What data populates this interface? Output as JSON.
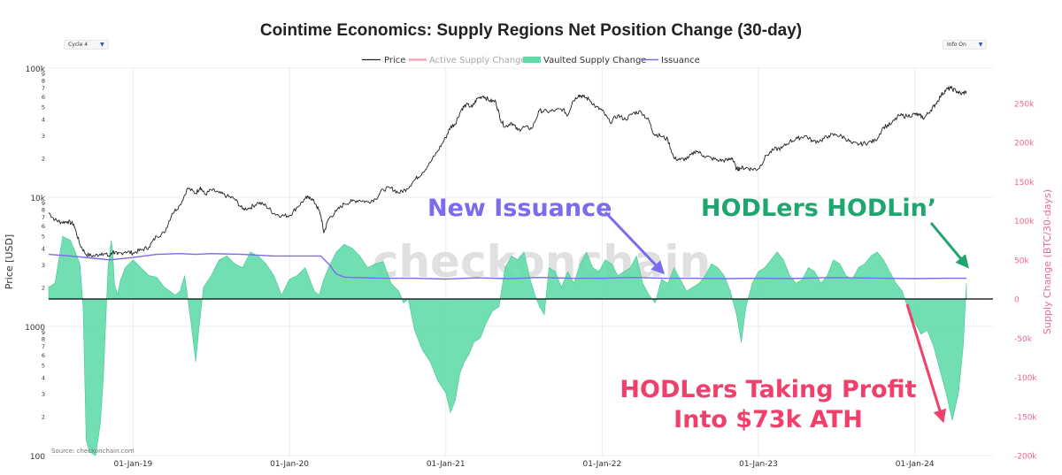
{
  "ui": {
    "cycle_label": "Cycle 4",
    "info_label": "Info On",
    "dropdown_arrow": "▼"
  },
  "chart_data": {
    "type": "line",
    "title": "Cointime Economics: Supply Regions Net Position Change (30-day)",
    "legend": {
      "position": "top-center",
      "entries": [
        {
          "name": "Price",
          "color": "#222222",
          "kind": "line"
        },
        {
          "name": "Active Supply Change",
          "color": "#f7a3b8",
          "kind": "line",
          "muted": true
        },
        {
          "name": "Vaulted Supply Change",
          "color": "#5fdba9",
          "kind": "area"
        },
        {
          "name": "Issuance",
          "color": "#7a6bef",
          "kind": "line"
        }
      ]
    },
    "y_left": {
      "label": "Price [USD]",
      "scale": "log",
      "range": [
        100,
        100000
      ],
      "major_ticks": [
        {
          "value": 100,
          "label": "100"
        },
        {
          "value": 1000,
          "label": "1000"
        },
        {
          "value": 10000,
          "label": "10k"
        },
        {
          "value": 100000,
          "label": "100k"
        }
      ],
      "minor_ticks": [
        {
          "value": 200,
          "label": "2"
        },
        {
          "value": 300,
          "label": "3"
        },
        {
          "value": 400,
          "label": "4"
        },
        {
          "value": 500,
          "label": "5"
        },
        {
          "value": 600,
          "label": "6"
        },
        {
          "value": 700,
          "label": "7"
        },
        {
          "value": 800,
          "label": "8"
        },
        {
          "value": 900,
          "label": "9"
        },
        {
          "value": 2000,
          "label": "2"
        },
        {
          "value": 3000,
          "label": "3"
        },
        {
          "value": 4000,
          "label": "4"
        },
        {
          "value": 5000,
          "label": "5"
        },
        {
          "value": 6000,
          "label": "6"
        },
        {
          "value": 7000,
          "label": "7"
        },
        {
          "value": 8000,
          "label": "8"
        },
        {
          "value": 9000,
          "label": "9"
        },
        {
          "value": 20000,
          "label": "2"
        },
        {
          "value": 30000,
          "label": "3"
        },
        {
          "value": 40000,
          "label": "4"
        },
        {
          "value": 50000,
          "label": "5"
        },
        {
          "value": 60000,
          "label": "6"
        },
        {
          "value": 70000,
          "label": "7"
        },
        {
          "value": 80000,
          "label": "8"
        },
        {
          "value": 90000,
          "label": "9"
        }
      ]
    },
    "y_right": {
      "label": "Supply Change (BTC/30-days)",
      "range": [
        -200000,
        295000
      ],
      "ticks": [
        {
          "value": 250000,
          "label": "250k"
        },
        {
          "value": 200000,
          "label": "200k"
        },
        {
          "value": 150000,
          "label": "150k"
        },
        {
          "value": 100000,
          "label": "100k"
        },
        {
          "value": 50000,
          "label": "50k"
        },
        {
          "value": 0,
          "label": "0"
        },
        {
          "value": -50000,
          "label": "-50k"
        },
        {
          "value": -100000,
          "label": "-100k"
        },
        {
          "value": -150000,
          "label": "-150k"
        },
        {
          "value": -200000,
          "label": "-200k"
        }
      ]
    },
    "x_axis": {
      "range": [
        2018.46,
        2024.5
      ],
      "ticks": [
        {
          "value": 2019.0,
          "label": "01-Jan-19"
        },
        {
          "value": 2020.0,
          "label": "01-Jan-20"
        },
        {
          "value": 2021.0,
          "label": "01-Jan-21"
        },
        {
          "value": 2022.0,
          "label": "01-Jan-22"
        },
        {
          "value": 2023.0,
          "label": "01-Jan-23"
        },
        {
          "value": 2024.0,
          "label": "01-Jan-24"
        }
      ]
    },
    "series": [
      {
        "name": "Price",
        "color": "#222222",
        "x": [
          2018.46,
          2018.5,
          2018.54,
          2018.58,
          2018.62,
          2018.66,
          2018.7,
          2018.75,
          2018.8,
          2018.85,
          2018.87,
          2018.9,
          2018.95,
          2019.0,
          2019.05,
          2019.1,
          2019.15,
          2019.2,
          2019.25,
          2019.3,
          2019.35,
          2019.4,
          2019.43,
          2019.46,
          2019.5,
          2019.55,
          2019.6,
          2019.65,
          2019.7,
          2019.75,
          2019.8,
          2019.85,
          2019.9,
          2019.95,
          2020.0,
          2020.05,
          2020.1,
          2020.13,
          2020.17,
          2020.2,
          2020.22,
          2020.25,
          2020.3,
          2020.35,
          2020.4,
          2020.45,
          2020.5,
          2020.55,
          2020.6,
          2020.65,
          2020.7,
          2020.75,
          2020.8,
          2020.85,
          2020.9,
          2020.95,
          2021.0,
          2021.03,
          2021.06,
          2021.1,
          2021.13,
          2021.17,
          2021.2,
          2021.24,
          2021.28,
          2021.32,
          2021.35,
          2021.38,
          2021.42,
          2021.46,
          2021.5,
          2021.55,
          2021.6,
          2021.65,
          2021.7,
          2021.75,
          2021.78,
          2021.81,
          2021.85,
          2021.88,
          2021.92,
          2021.96,
          2022.0,
          2022.05,
          2022.1,
          2022.15,
          2022.2,
          2022.25,
          2022.3,
          2022.33,
          2022.37,
          2022.42,
          2022.46,
          2022.5,
          2022.55,
          2022.6,
          2022.65,
          2022.7,
          2022.75,
          2022.8,
          2022.83,
          2022.86,
          2022.88,
          2022.92,
          2022.96,
          2023.0,
          2023.05,
          2023.1,
          2023.15,
          2023.2,
          2023.25,
          2023.3,
          2023.35,
          2023.4,
          2023.45,
          2023.5,
          2023.55,
          2023.6,
          2023.65,
          2023.7,
          2023.75,
          2023.8,
          2023.85,
          2023.9,
          2023.95,
          2024.0,
          2024.03,
          2024.06,
          2024.1,
          2024.13,
          2024.17,
          2024.2,
          2024.23,
          2024.27,
          2024.3,
          2024.33
        ],
        "values": [
          7600,
          6700,
          6400,
          6500,
          6200,
          4300,
          3600,
          3500,
          3700,
          3500,
          3800,
          3600,
          3800,
          3700,
          3900,
          4100,
          5000,
          5300,
          7500,
          8700,
          11800,
          10700,
          12000,
          10500,
          11400,
          10800,
          10200,
          9700,
          8100,
          8300,
          9100,
          8600,
          7500,
          7200,
          7200,
          8400,
          9700,
          10100,
          8800,
          7300,
          5300,
          6800,
          7800,
          8900,
          9300,
          9500,
          9200,
          9700,
          11500,
          11800,
          10800,
          11600,
          13600,
          15500,
          18500,
          23000,
          29000,
          35000,
          37000,
          48000,
          52000,
          50000,
          58000,
          61000,
          56000,
          55000,
          40000,
          35000,
          38000,
          33000,
          35000,
          34000,
          47000,
          46000,
          47000,
          48000,
          43000,
          55000,
          62000,
          60000,
          57000,
          50000,
          47000,
          38000,
          43000,
          40000,
          45000,
          46000,
          39000,
          31000,
          30000,
          28000,
          20000,
          19500,
          20000,
          23000,
          21000,
          20000,
          19300,
          19300,
          20300,
          16500,
          16800,
          16900,
          16500,
          16600,
          21000,
          23500,
          24000,
          27000,
          28500,
          30000,
          27000,
          27500,
          30000,
          30500,
          29000,
          26000,
          25800,
          26500,
          27500,
          35000,
          37000,
          43000,
          42500,
          44000,
          43000,
          41000,
          47000,
          52000,
          62000,
          68000,
          70000,
          66000,
          63000,
          66000
        ]
      },
      {
        "name": "Vaulted Supply Change",
        "color": "#5fdba9",
        "x": [
          2018.46,
          2018.5,
          2018.55,
          2018.6,
          2018.64,
          2018.66,
          2018.68,
          2018.7,
          2018.72,
          2018.76,
          2018.79,
          2018.81,
          2018.84,
          2018.86,
          2018.87,
          2018.88,
          2018.9,
          2018.92,
          2018.95,
          2019.0,
          2019.05,
          2019.1,
          2019.15,
          2019.2,
          2019.25,
          2019.27,
          2019.3,
          2019.33,
          2019.37,
          2019.4,
          2019.42,
          2019.45,
          2019.5,
          2019.55,
          2019.6,
          2019.65,
          2019.7,
          2019.75,
          2019.8,
          2019.85,
          2019.9,
          2019.95,
          2020.0,
          2020.05,
          2020.1,
          2020.13,
          2020.16,
          2020.19,
          2020.22,
          2020.25,
          2020.3,
          2020.35,
          2020.4,
          2020.45,
          2020.5,
          2020.55,
          2020.6,
          2020.65,
          2020.7,
          2020.73,
          2020.76,
          2020.8,
          2020.85,
          2020.9,
          2020.95,
          2021.0,
          2021.03,
          2021.06,
          2021.09,
          2021.12,
          2021.15,
          2021.18,
          2021.22,
          2021.26,
          2021.3,
          2021.34,
          2021.38,
          2021.42,
          2021.46,
          2021.5,
          2021.54,
          2021.57,
          2021.6,
          2021.63,
          2021.66,
          2021.7,
          2021.74,
          2021.78,
          2021.82,
          2021.86,
          2021.9,
          2021.94,
          2021.98,
          2022.02,
          2022.06,
          2022.1,
          2022.14,
          2022.18,
          2022.22,
          2022.26,
          2022.3,
          2022.34,
          2022.38,
          2022.42,
          2022.46,
          2022.5,
          2022.54,
          2022.58,
          2022.62,
          2022.66,
          2022.7,
          2022.74,
          2022.78,
          2022.82,
          2022.86,
          2022.89,
          2022.92,
          2022.96,
          2023.0,
          2023.04,
          2023.08,
          2023.12,
          2023.16,
          2023.2,
          2023.24,
          2023.28,
          2023.32,
          2023.36,
          2023.4,
          2023.44,
          2023.48,
          2023.52,
          2023.56,
          2023.6,
          2023.64,
          2023.68,
          2023.72,
          2023.76,
          2023.8,
          2023.84,
          2023.88,
          2023.92,
          2023.96,
          2024.0,
          2024.04,
          2024.08,
          2024.12,
          2024.16,
          2024.2,
          2024.24,
          2024.28,
          2024.31,
          2024.33
        ],
        "values": [
          15000,
          20000,
          80000,
          75000,
          55000,
          45000,
          -10000,
          -180000,
          -195000,
          -200000,
          -160000,
          -100000,
          40000,
          75000,
          60000,
          20000,
          5000,
          25000,
          40000,
          50000,
          40000,
          30000,
          28000,
          15000,
          8000,
          5000,
          10000,
          30000,
          -30000,
          -80000,
          -40000,
          15000,
          30000,
          50000,
          55000,
          45000,
          40000,
          60000,
          55000,
          45000,
          30000,
          5000,
          25000,
          30000,
          40000,
          25000,
          10000,
          5000,
          25000,
          40000,
          60000,
          70000,
          65000,
          55000,
          40000,
          45000,
          48000,
          20000,
          10000,
          -5000,
          0,
          -40000,
          -65000,
          -80000,
          -105000,
          -120000,
          -145000,
          -130000,
          -95000,
          -80000,
          -70000,
          -55000,
          -50000,
          -30000,
          -15000,
          -10000,
          40000,
          55000,
          50000,
          60000,
          25000,
          5000,
          -10000,
          -20000,
          40000,
          35000,
          15000,
          35000,
          20000,
          45000,
          60000,
          40000,
          35000,
          50000,
          45000,
          30000,
          35000,
          40000,
          55000,
          20000,
          5000,
          -5000,
          25000,
          20000,
          40000,
          25000,
          10000,
          15000,
          20000,
          30000,
          45000,
          40000,
          30000,
          10000,
          -20000,
          -55000,
          -10000,
          20000,
          35000,
          40000,
          50000,
          60000,
          50000,
          30000,
          20000,
          25000,
          40000,
          35000,
          20000,
          30000,
          50000,
          45000,
          30000,
          25000,
          40000,
          45000,
          55000,
          60000,
          50000,
          35000,
          20000,
          10000,
          -15000,
          -30000,
          -45000,
          -40000,
          -60000,
          -90000,
          -120000,
          -155000,
          -120000,
          -60000,
          20000
        ]
      },
      {
        "name": "Issuance",
        "color": "#7a6bef",
        "x": [
          2018.46,
          2018.6,
          2018.75,
          2018.85,
          2019.0,
          2019.15,
          2019.3,
          2019.4,
          2019.5,
          2019.7,
          2019.9,
          2020.1,
          2020.2,
          2020.25,
          2020.3,
          2020.35,
          2020.4,
          2020.6,
          2020.8,
          2021.0,
          2021.2,
          2021.4,
          2021.6,
          2021.8,
          2022.0,
          2022.2,
          2022.4,
          2022.6,
          2022.8,
          2023.0,
          2023.2,
          2023.4,
          2023.6,
          2023.8,
          2024.0,
          2024.2,
          2024.33
        ],
        "values": [
          57000,
          55000,
          52000,
          50000,
          53000,
          57000,
          58000,
          57000,
          58000,
          57000,
          55000,
          55000,
          55000,
          45000,
          32000,
          28000,
          27500,
          26500,
          26500,
          25500,
          27000,
          26000,
          27500,
          26500,
          26500,
          27500,
          26500,
          26500,
          26000,
          26500,
          26000,
          27000,
          27000,
          26500,
          26000,
          26500,
          26500
        ]
      },
      {
        "name": "Active Supply Change",
        "color": "#f7a3b8",
        "visible": false,
        "x": [],
        "values": []
      }
    ],
    "annotations": [
      {
        "id": "new-issuance",
        "text": "New Issuance",
        "color": "#7a6bef",
        "points_to": {
          "x": 2022.35,
          "y_right": 30000
        }
      },
      {
        "id": "hodlers-hodlin",
        "text": "HODLers HODLin’",
        "color": "#1fa56e",
        "points_to": {
          "x": 2024.31,
          "y_right": 32000
        }
      },
      {
        "id": "taking-profit-line1",
        "text": "HODLers Taking Profit",
        "color": "#f03f6a"
      },
      {
        "id": "taking-profit-line2",
        "text": "Into $73k ATH",
        "color": "#f03f6a",
        "points_to": {
          "x": 2024.19,
          "y_right": -162000
        }
      }
    ],
    "watermark": "checkonchain",
    "source": "Source: checkonchain.com"
  }
}
